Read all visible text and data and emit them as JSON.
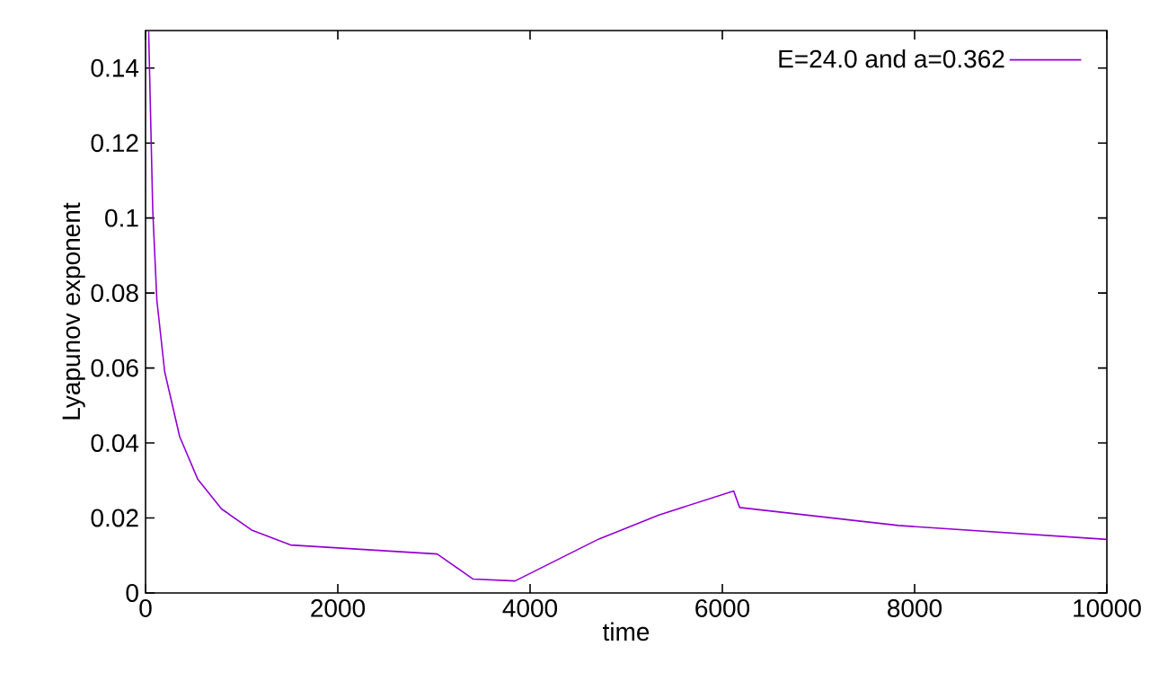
{
  "chart_data": {
    "type": "line",
    "xlabel": "time",
    "ylabel": "Lyapunov exponent",
    "xlim": [
      0,
      10000
    ],
    "ylim": [
      0,
      0.15
    ],
    "xticks": [
      0,
      2000,
      4000,
      6000,
      8000,
      10000
    ],
    "yticks": [
      0,
      0.02,
      0.04,
      0.06,
      0.08,
      0.1,
      0.12,
      0.14
    ],
    "legend": "top right",
    "grid": false,
    "series": [
      {
        "name": "E=24.0 and a=0.362",
        "color": "#9400d3",
        "x": [
          32,
          75,
          118,
          199,
          355,
          542,
          791,
          1103,
          1508,
          3034,
          3408,
          3844,
          4716,
          5340,
          6118,
          6180,
          7832,
          10000
        ],
        "values": [
          0.15,
          0.102,
          0.078,
          0.059,
          0.0417,
          0.0304,
          0.0224,
          0.0168,
          0.0128,
          0.0104,
          0.0037,
          0.0032,
          0.0144,
          0.0208,
          0.0272,
          0.0228,
          0.018,
          0.0143
        ]
      }
    ]
  }
}
